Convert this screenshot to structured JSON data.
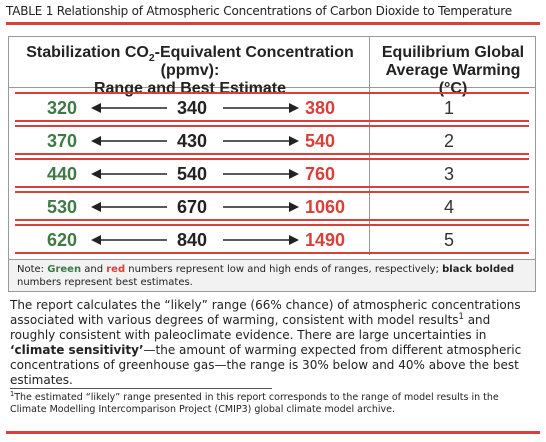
{
  "title": "TABLE 1  Relationship of Atmospheric Concentrations of Carbon Dioxide to Temperature",
  "table": {
    "header": {
      "range": [
        "Stabilization CO",
        "2",
        "-Equivalent Concentration (ppmv):",
        "Range and Best Estimate"
      ],
      "warming": "Equilibrium Global Average Warming (°C)"
    },
    "rows": [
      [
        320,
        340,
        380,
        1
      ],
      [
        370,
        430,
        540,
        2
      ],
      [
        440,
        540,
        760,
        3
      ],
      [
        530,
        670,
        1060,
        4
      ],
      [
        620,
        840,
        1490,
        5
      ]
    ]
  },
  "note": [
    "Note: ",
    "Green",
    " and ",
    "red",
    " numbers represent low and high ends of ranges, respectively; ",
    "black bolded",
    " numbers represent best estimates."
  ],
  "paragraph": [
    "The report calculates the “likely” range (66% chance) of atmospheric concentrations associated with various degrees of warming, consistent with model results",
    "1",
    " and roughly consistent with paleoclimate evidence. There are large uncertainties in ",
    "‘climate sensitivity’",
    "—the amount of warming expected from different atmospheric concentrations of greenhouse gas—the range is 30% below and 40% above the best estimates."
  ],
  "footnote": [
    "1",
    "The estimated “likely” range presented in this report corresponds to the range of model results in the Climate Modelling Intercomparison Project (CMIP3) global climate model archive."
  ]
}
